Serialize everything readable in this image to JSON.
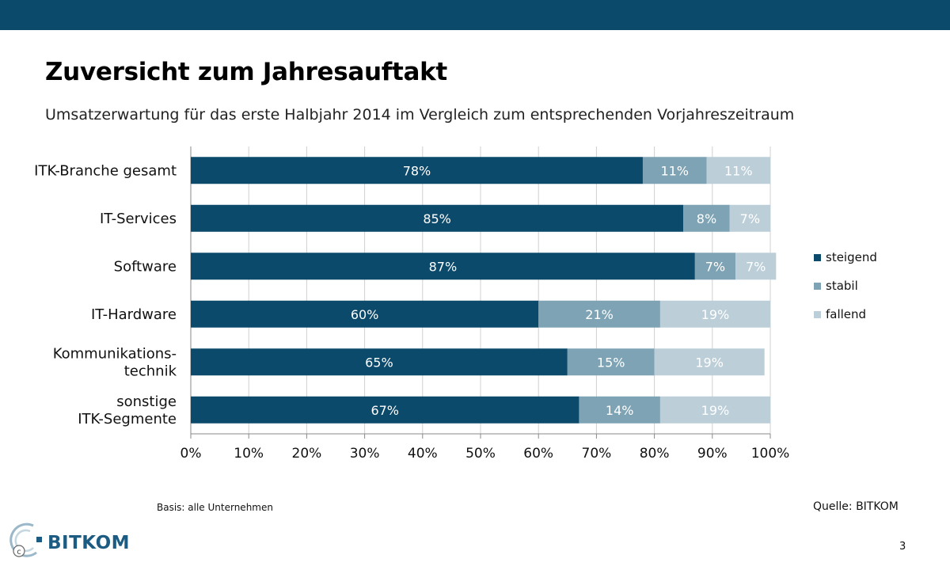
{
  "page": {
    "title": "Zuversicht zum Jahresauftakt",
    "subtitle": "Umsatzerwartung für das erste Halbjahr 2014 im Vergleich zum entsprechenden Vorjahreszeitraum",
    "basis": "Basis: alle Unternehmen",
    "source": "Quelle: BITKOM",
    "page_number": "3",
    "logo_text": "BITKOM"
  },
  "colors": {
    "header_band": "#0b4a6b",
    "steigend": "#0b4a6b",
    "stabil": "#7ea3b4",
    "fallend": "#bccfd9"
  },
  "chart_data": {
    "type": "bar",
    "orientation": "horizontal",
    "stacked": true,
    "categories": [
      "ITK-Branche gesamt",
      "IT-Services",
      "Software",
      "IT-Hardware",
      "Kommunikations-\ntechnik",
      "sonstige\nITK-Segmente"
    ],
    "series": [
      {
        "name": "steigend",
        "values": [
          78,
          85,
          87,
          60,
          65,
          67
        ],
        "labels": [
          "78%",
          "85%",
          "87%",
          "60%",
          "65%",
          "67%"
        ]
      },
      {
        "name": "stabil",
        "values": [
          11,
          8,
          7,
          21,
          15,
          14
        ],
        "labels": [
          "11%",
          "8%",
          "7%",
          "21%",
          "15%",
          "14%"
        ]
      },
      {
        "name": "fallend",
        "values": [
          11,
          7,
          7,
          19,
          19,
          19
        ],
        "labels": [
          "11%",
          "7%",
          "7%",
          "19%",
          "19%",
          "19%"
        ]
      }
    ],
    "xlim": [
      0,
      100
    ],
    "xticks": [
      "0%",
      "10%",
      "20%",
      "30%",
      "40%",
      "50%",
      "60%",
      "70%",
      "80%",
      "90%",
      "100%"
    ],
    "grid": true,
    "legend_position": "right"
  }
}
